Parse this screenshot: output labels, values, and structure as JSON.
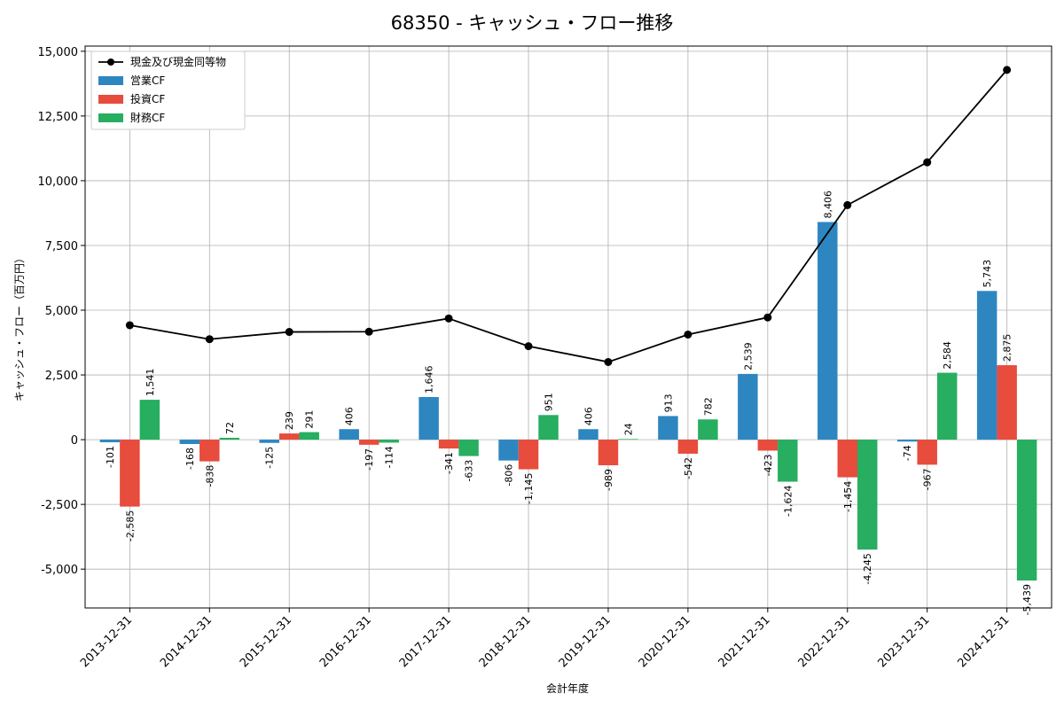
{
  "chart_data": {
    "type": "bar",
    "title": "68350 - キャッシュ・フロー推移",
    "xlabel": "会計年度",
    "ylabel": "キャッシュ・フロー（百万円）",
    "ylim": [
      -6500,
      15200
    ],
    "yticks": [
      -5000,
      -2500,
      0,
      2500,
      5000,
      7500,
      10000,
      12500,
      15000
    ],
    "ytick_labels": [
      "-5,000",
      "-2,500",
      "0",
      "2,500",
      "5,000",
      "7,500",
      "10,000",
      "12,500",
      "15,000"
    ],
    "categories": [
      "2013-12-31",
      "2014-12-31",
      "2015-12-31",
      "2016-12-31",
      "2017-12-31",
      "2018-12-31",
      "2019-12-31",
      "2020-12-31",
      "2021-12-31",
      "2022-12-31",
      "2023-12-31",
      "2024-12-31"
    ],
    "series": [
      {
        "name": "営業CF",
        "kind": "bar",
        "color": "#2e86c1",
        "values": [
          -101,
          -168,
          -125,
          406,
          1646,
          -806,
          406,
          913,
          2539,
          8406,
          -74,
          5743
        ],
        "labels": [
          "-101",
          "-168",
          "-125",
          "406",
          "1,646",
          "-806",
          "406",
          "913",
          "2,539",
          "8,406",
          "-74",
          "5,743"
        ]
      },
      {
        "name": "投資CF",
        "kind": "bar",
        "color": "#e74c3c",
        "values": [
          -2585,
          -838,
          239,
          -197,
          -341,
          -1145,
          -989,
          -542,
          -423,
          -1454,
          -967,
          2875
        ],
        "labels": [
          "-2,585",
          "-838",
          "239",
          "-197",
          "-341",
          "-1,145",
          "-989",
          "-542",
          "-423",
          "-1,454",
          "-967",
          "2,875"
        ]
      },
      {
        "name": "財務CF",
        "kind": "bar",
        "color": "#27ae60",
        "values": [
          1541,
          72,
          291,
          -114,
          -633,
          951,
          24,
          782,
          -1624,
          -4245,
          2584,
          -5439
        ],
        "labels": [
          "1,541",
          "72",
          "291",
          "-114",
          "-633",
          "951",
          "24",
          "782",
          "-1,624",
          "-4,245",
          "2,584",
          "-5,439"
        ]
      },
      {
        "name": "現金及び現金同等物",
        "kind": "line",
        "color": "#000000",
        "values": [
          4420,
          3880,
          4160,
          4170,
          4680,
          3610,
          3000,
          4060,
          4720,
          9060,
          10710,
          14280
        ]
      }
    ],
    "legend_position": "top-left",
    "grid": true
  }
}
